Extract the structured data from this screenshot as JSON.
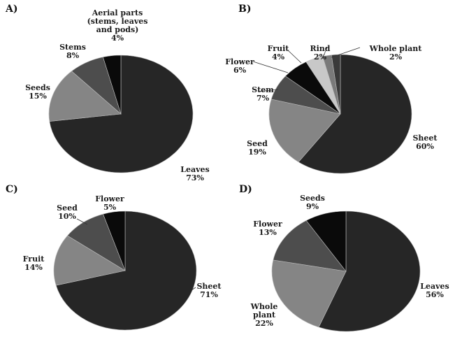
{
  "chart_data": [
    {
      "type": "pie",
      "panel": "A)",
      "slices": [
        {
          "label": [
            "Leaves"
          ],
          "value": 73,
          "value_label": "73%",
          "color": "#262626"
        },
        {
          "label": [
            "Seeds"
          ],
          "value": 15,
          "value_label": "15%",
          "color": "#858585"
        },
        {
          "label": [
            "Stems"
          ],
          "value": 8,
          "value_label": "8%",
          "color": "#4d4d4d"
        },
        {
          "label": [
            "Aerial parts",
            "(stems, leaves",
            "and pods)"
          ],
          "value": 4,
          "value_label": "4%",
          "color": "#0a0a0a"
        }
      ]
    },
    {
      "type": "pie",
      "panel": "B)",
      "slices": [
        {
          "label": [
            "Sheet"
          ],
          "value": 60,
          "value_label": "60%",
          "color": "#262626"
        },
        {
          "label": [
            "Seed"
          ],
          "value": 19,
          "value_label": "19%",
          "color": "#858585"
        },
        {
          "label": [
            "Stem"
          ],
          "value": 7,
          "value_label": "7%",
          "color": "#4d4d4d"
        },
        {
          "label": [
            "Flower"
          ],
          "value": 6,
          "value_label": "6%",
          "color": "#0a0a0a"
        },
        {
          "label": [
            "Fruit"
          ],
          "value": 4,
          "value_label": "4%",
          "color": "#c8c8c8"
        },
        {
          "label": [
            "Rind"
          ],
          "value": 2,
          "value_label": "2%",
          "color": "#7a7a7a"
        },
        {
          "label": [
            "Whole plant"
          ],
          "value": 2,
          "value_label": "2%",
          "color": "#3a3a3a"
        }
      ]
    },
    {
      "type": "pie",
      "panel": "C)",
      "slices": [
        {
          "label": [
            "Sheet"
          ],
          "value": 71,
          "value_label": "71%",
          "color": "#262626"
        },
        {
          "label": [
            "Fruit"
          ],
          "value": 14,
          "value_label": "14%",
          "color": "#858585"
        },
        {
          "label": [
            "Seed"
          ],
          "value": 10,
          "value_label": "10%",
          "color": "#4d4d4d"
        },
        {
          "label": [
            "Flower"
          ],
          "value": 5,
          "value_label": "5%",
          "color": "#0a0a0a"
        }
      ]
    },
    {
      "type": "pie",
      "panel": "D)",
      "slices": [
        {
          "label": [
            "Leaves"
          ],
          "value": 56,
          "value_label": "56%",
          "color": "#262626"
        },
        {
          "label": [
            "Whole",
            "plant"
          ],
          "value": 22,
          "value_label": "22%",
          "color": "#858585"
        },
        {
          "label": [
            "Flower"
          ],
          "value": 13,
          "value_label": "13%",
          "color": "#4d4d4d"
        },
        {
          "label": [
            "Seeds"
          ],
          "value": 9,
          "value_label": "9%",
          "color": "#0a0a0a"
        }
      ]
    }
  ]
}
